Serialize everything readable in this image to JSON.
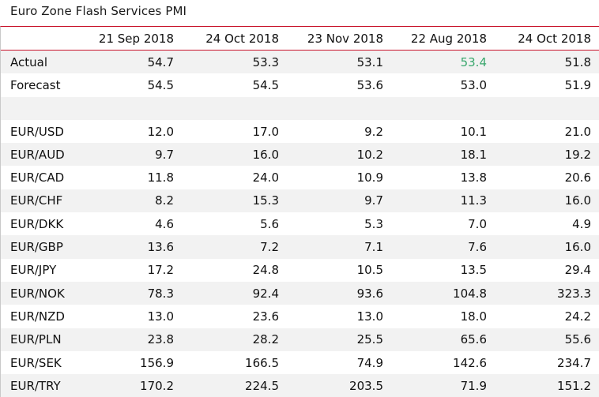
{
  "title": "Euro Zone Flash Services PMI",
  "columns": [
    "",
    "21 Sep 2018",
    "24 Oct 2018",
    "23 Nov 2018",
    "22 Aug 2018",
    "24 Oct 2018"
  ],
  "rows": [
    {
      "label": "Actual",
      "values": [
        "54.7",
        "53.3",
        "53.1",
        "53.4",
        "51.8"
      ]
    },
    {
      "label": "Forecast",
      "values": [
        "54.5",
        "54.5",
        "53.6",
        "53.0",
        "51.9"
      ]
    },
    {
      "label": "",
      "values": [
        "",
        "",
        "",
        "",
        ""
      ]
    },
    {
      "label": "EUR/USD",
      "values": [
        "12.0",
        "17.0",
        "9.2",
        "10.1",
        "21.0"
      ]
    },
    {
      "label": "EUR/AUD",
      "values": [
        "9.7",
        "16.0",
        "10.2",
        "18.1",
        "19.2"
      ]
    },
    {
      "label": "EUR/CAD",
      "values": [
        "11.8",
        "24.0",
        "10.9",
        "13.8",
        "20.6"
      ]
    },
    {
      "label": "EUR/CHF",
      "values": [
        "8.2",
        "15.3",
        "9.7",
        "11.3",
        "16.0"
      ]
    },
    {
      "label": "EUR/DKK",
      "values": [
        "4.6",
        "5.6",
        "5.3",
        "7.0",
        "4.9"
      ]
    },
    {
      "label": "EUR/GBP",
      "values": [
        "13.6",
        "7.2",
        "7.1",
        "7.6",
        "16.0"
      ]
    },
    {
      "label": "EUR/JPY",
      "values": [
        "17.2",
        "24.8",
        "10.5",
        "13.5",
        "29.4"
      ]
    },
    {
      "label": "EUR/NOK",
      "values": [
        "78.3",
        "92.4",
        "93.6",
        "104.8",
        "323.3"
      ]
    },
    {
      "label": "EUR/NZD",
      "values": [
        "13.0",
        "23.6",
        "13.0",
        "18.0",
        "24.2"
      ]
    },
    {
      "label": "EUR/PLN",
      "values": [
        "23.8",
        "28.2",
        "25.5",
        "65.6",
        "55.6"
      ]
    },
    {
      "label": "EUR/SEK",
      "values": [
        "156.9",
        "166.5",
        "74.9",
        "142.6",
        "234.7"
      ]
    },
    {
      "label": "EUR/TRY",
      "values": [
        "170.2",
        "224.5",
        "203.5",
        "71.9",
        "151.2"
      ]
    }
  ],
  "colors": {
    "highlight_value": "#3aa76d",
    "header_rule": "#c8142b",
    "band_shade": "#f2f2f2"
  }
}
